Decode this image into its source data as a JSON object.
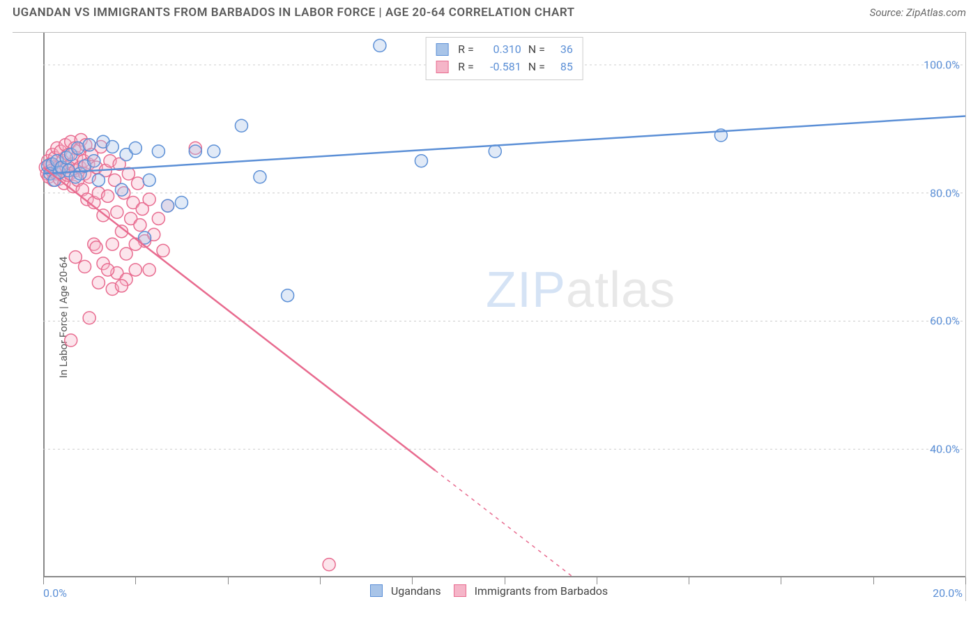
{
  "header": {
    "title": "UGANDAN VS IMMIGRANTS FROM BARBADOS IN LABOR FORCE | AGE 20-64 CORRELATION CHART",
    "source": "Source: ZipAtlas.com"
  },
  "chart": {
    "type": "scatter",
    "ylabel": "In Labor Force | Age 20-64",
    "xlim": [
      0,
      20
    ],
    "ylim": [
      20,
      105
    ],
    "x_ticks": [
      0,
      2,
      4,
      6,
      8,
      10,
      12,
      14,
      16,
      18,
      20
    ],
    "x_tick_labels": {
      "0": "0.0%",
      "20": "20.0%"
    },
    "y_gridlines": [
      40,
      60,
      80,
      100
    ],
    "y_tick_labels": {
      "40": "40.0%",
      "60": "60.0%",
      "80": "80.0%",
      "100": "100.0%"
    },
    "background_color": "#ffffff",
    "grid_color": "#cccccc",
    "axis_color": "#888888",
    "tick_label_color": "#5b8fd6",
    "label_fontsize": 15,
    "tick_fontsize": 16,
    "title_fontsize": 17,
    "marker_radius": 9,
    "marker_stroke_width": 1.5,
    "marker_fill_opacity": 0.35,
    "line_width": 2.5,
    "series": {
      "ugandans": {
        "label": "Ugandans",
        "color_stroke": "#5b8fd6",
        "color_fill": "#a8c4e8",
        "R": "0.310",
        "N": "36",
        "trend": {
          "x1": 0,
          "y1": 83.0,
          "x2": 20,
          "y2": 92.0
        },
        "points": [
          [
            0.1,
            84.2
          ],
          [
            0.15,
            83.0
          ],
          [
            0.2,
            84.5
          ],
          [
            0.25,
            82.0
          ],
          [
            0.3,
            85.0
          ],
          [
            0.35,
            83.2
          ],
          [
            0.4,
            84.0
          ],
          [
            0.5,
            85.5
          ],
          [
            0.55,
            83.5
          ],
          [
            0.6,
            86.0
          ],
          [
            0.7,
            82.5
          ],
          [
            0.75,
            87.0
          ],
          [
            0.8,
            83.0
          ],
          [
            0.9,
            84.2
          ],
          [
            1.0,
            87.5
          ],
          [
            1.1,
            85.0
          ],
          [
            1.2,
            82.0
          ],
          [
            1.3,
            88.0
          ],
          [
            1.5,
            87.2
          ],
          [
            1.7,
            80.5
          ],
          [
            1.8,
            86.0
          ],
          [
            2.0,
            87.0
          ],
          [
            2.2,
            73.0
          ],
          [
            2.3,
            82.0
          ],
          [
            2.5,
            86.5
          ],
          [
            2.7,
            78.0
          ],
          [
            3.0,
            78.5
          ],
          [
            3.3,
            86.5
          ],
          [
            3.7,
            86.5
          ],
          [
            4.3,
            90.5
          ],
          [
            4.7,
            82.5
          ],
          [
            5.3,
            64.0
          ],
          [
            7.3,
            103.0
          ],
          [
            8.2,
            85.0
          ],
          [
            9.8,
            86.5
          ],
          [
            14.7,
            89.0
          ]
        ]
      },
      "barbados": {
        "label": "Immigrants from Barbados",
        "color_stroke": "#e86b8f",
        "color_fill": "#f5b5c8",
        "R": "-0.581",
        "N": "85",
        "trend": {
          "x1": 0,
          "y1": 84.0,
          "x2": 11.5,
          "y2": 20.0
        },
        "trend_dashed_from_x": 8.5,
        "points": [
          [
            0.05,
            84.0
          ],
          [
            0.08,
            83.0
          ],
          [
            0.1,
            85.0
          ],
          [
            0.12,
            82.5
          ],
          [
            0.15,
            84.5
          ],
          [
            0.18,
            83.5
          ],
          [
            0.2,
            86.0
          ],
          [
            0.22,
            82.0
          ],
          [
            0.25,
            85.5
          ],
          [
            0.28,
            83.0
          ],
          [
            0.3,
            87.0
          ],
          [
            0.32,
            84.0
          ],
          [
            0.35,
            82.2
          ],
          [
            0.38,
            86.5
          ],
          [
            0.4,
            83.8
          ],
          [
            0.42,
            85.0
          ],
          [
            0.45,
            81.5
          ],
          [
            0.48,
            87.5
          ],
          [
            0.5,
            84.0
          ],
          [
            0.52,
            82.8
          ],
          [
            0.55,
            86.0
          ],
          [
            0.58,
            83.0
          ],
          [
            0.6,
            88.0
          ],
          [
            0.62,
            84.5
          ],
          [
            0.65,
            81.0
          ],
          [
            0.68,
            87.0
          ],
          [
            0.7,
            83.5
          ],
          [
            0.72,
            85.5
          ],
          [
            0.75,
            82.0
          ],
          [
            0.78,
            86.8
          ],
          [
            0.8,
            84.0
          ],
          [
            0.82,
            88.3
          ],
          [
            0.85,
            80.5
          ],
          [
            0.88,
            85.0
          ],
          [
            0.9,
            83.0
          ],
          [
            0.92,
            87.5
          ],
          [
            0.95,
            79.0
          ],
          [
            0.98,
            84.5
          ],
          [
            1.0,
            82.5
          ],
          [
            1.05,
            86.0
          ],
          [
            1.1,
            78.5
          ],
          [
            1.15,
            84.0
          ],
          [
            1.2,
            80.0
          ],
          [
            1.25,
            87.2
          ],
          [
            1.3,
            76.5
          ],
          [
            1.35,
            83.5
          ],
          [
            1.4,
            79.5
          ],
          [
            1.45,
            85.0
          ],
          [
            1.5,
            72.0
          ],
          [
            1.55,
            82.0
          ],
          [
            1.6,
            77.0
          ],
          [
            1.65,
            84.5
          ],
          [
            1.7,
            74.0
          ],
          [
            1.75,
            80.0
          ],
          [
            1.8,
            70.5
          ],
          [
            1.85,
            83.0
          ],
          [
            1.9,
            76.0
          ],
          [
            1.95,
            78.5
          ],
          [
            2.0,
            68.0
          ],
          [
            2.05,
            81.5
          ],
          [
            2.1,
            75.0
          ],
          [
            2.15,
            77.5
          ],
          [
            2.2,
            72.5
          ],
          [
            2.3,
            79.0
          ],
          [
            2.4,
            73.5
          ],
          [
            2.5,
            76.0
          ],
          [
            2.6,
            71.0
          ],
          [
            2.7,
            78.0
          ],
          [
            3.3,
            87.0
          ],
          [
            0.7,
            70.0
          ],
          [
            0.9,
            68.5
          ],
          [
            1.1,
            72.0
          ],
          [
            1.2,
            66.0
          ],
          [
            1.3,
            69.0
          ],
          [
            1.5,
            65.0
          ],
          [
            1.6,
            67.5
          ],
          [
            1.8,
            66.5
          ],
          [
            0.6,
            57.0
          ],
          [
            1.0,
            60.5
          ],
          [
            1.15,
            71.5
          ],
          [
            1.4,
            68.0
          ],
          [
            1.7,
            65.5
          ],
          [
            2.0,
            72.0
          ],
          [
            2.3,
            68.0
          ],
          [
            6.2,
            22.0
          ]
        ]
      }
    },
    "watermark": {
      "text_a": "ZIP",
      "text_b": "atlas"
    }
  },
  "legend": {
    "series1": "Ugandans",
    "series2": "Immigrants from Barbados"
  }
}
